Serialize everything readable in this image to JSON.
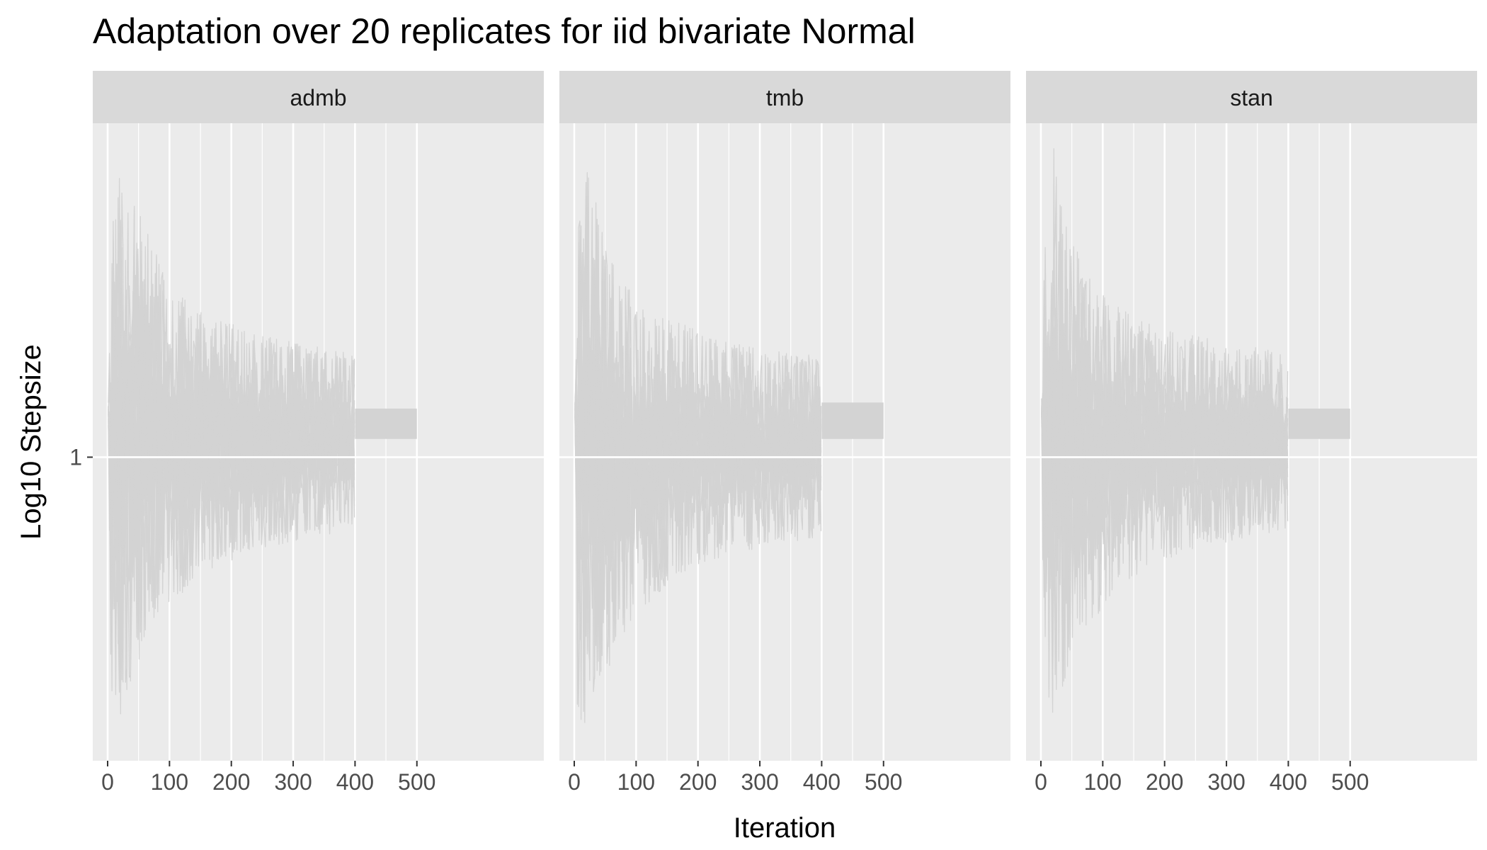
{
  "chart_data": {
    "type": "line",
    "title": "Adaptation over 20 replicates for iid bivariate Normal",
    "xlabel": "Iteration",
    "ylabel": "Log10 Stepsize",
    "x_ticks": [
      "0",
      "100",
      "200",
      "300",
      "400",
      "500"
    ],
    "x_tick_values": [
      0,
      100,
      200,
      300,
      400,
      500
    ],
    "xlim": [
      0,
      500
    ],
    "y_ticks": [
      "1"
    ],
    "y_tick_values": [
      1
    ],
    "ylim": [
      0.5,
      1.55
    ],
    "log_scale_y": true,
    "grid": true,
    "legend": "none",
    "series_color": "#d3d3d3",
    "panel_background": "#ebebeb",
    "strip_background": "#d9d9d9",
    "grid_color": "#ffffff",
    "replicates": 20,
    "adaptation_end": 400,
    "panels": [
      {
        "name": "admb",
        "envelope": {
          "iteration": [
            1,
            5,
            10,
            20,
            30,
            50,
            75,
            100,
            150,
            200,
            250,
            300,
            350,
            400
          ],
          "min": [
            1.05,
            0.63,
            0.55,
            0.57,
            0.6,
            0.66,
            0.72,
            0.76,
            0.8,
            0.83,
            0.85,
            0.86,
            0.87,
            0.88
          ],
          "max": [
            1.1,
            1.28,
            1.42,
            1.5,
            1.5,
            1.42,
            1.36,
            1.28,
            1.24,
            1.22,
            1.2,
            1.19,
            1.18,
            1.17
          ]
        },
        "sampling_band": {
          "iteration": [
            400,
            500
          ],
          "min": 1.03,
          "max": 1.08
        }
      },
      {
        "name": "tmb",
        "envelope": {
          "iteration": [
            1,
            5,
            10,
            20,
            30,
            50,
            75,
            100,
            150,
            200,
            250,
            300,
            350,
            400
          ],
          "min": [
            1.05,
            0.56,
            0.52,
            0.56,
            0.59,
            0.64,
            0.7,
            0.74,
            0.79,
            0.82,
            0.84,
            0.85,
            0.86,
            0.87
          ],
          "max": [
            1.1,
            1.35,
            1.48,
            1.49,
            1.44,
            1.36,
            1.3,
            1.26,
            1.23,
            1.21,
            1.19,
            1.18,
            1.17,
            1.17
          ]
        },
        "sampling_band": {
          "iteration": [
            400,
            500
          ],
          "min": 1.03,
          "max": 1.09
        }
      },
      {
        "name": "stan",
        "envelope": {
          "iteration": [
            1,
            5,
            10,
            20,
            30,
            50,
            75,
            100,
            150,
            200,
            250,
            300,
            350,
            400
          ],
          "min": [
            1.05,
            0.6,
            0.56,
            0.58,
            0.61,
            0.66,
            0.71,
            0.75,
            0.8,
            0.83,
            0.85,
            0.86,
            0.87,
            0.88
          ],
          "max": [
            1.1,
            1.3,
            1.44,
            1.53,
            1.44,
            1.36,
            1.3,
            1.27,
            1.23,
            1.21,
            1.2,
            1.19,
            1.18,
            1.17
          ]
        },
        "sampling_band": {
          "iteration": [
            400,
            500
          ],
          "min": 1.03,
          "max": 1.08
        }
      }
    ]
  }
}
